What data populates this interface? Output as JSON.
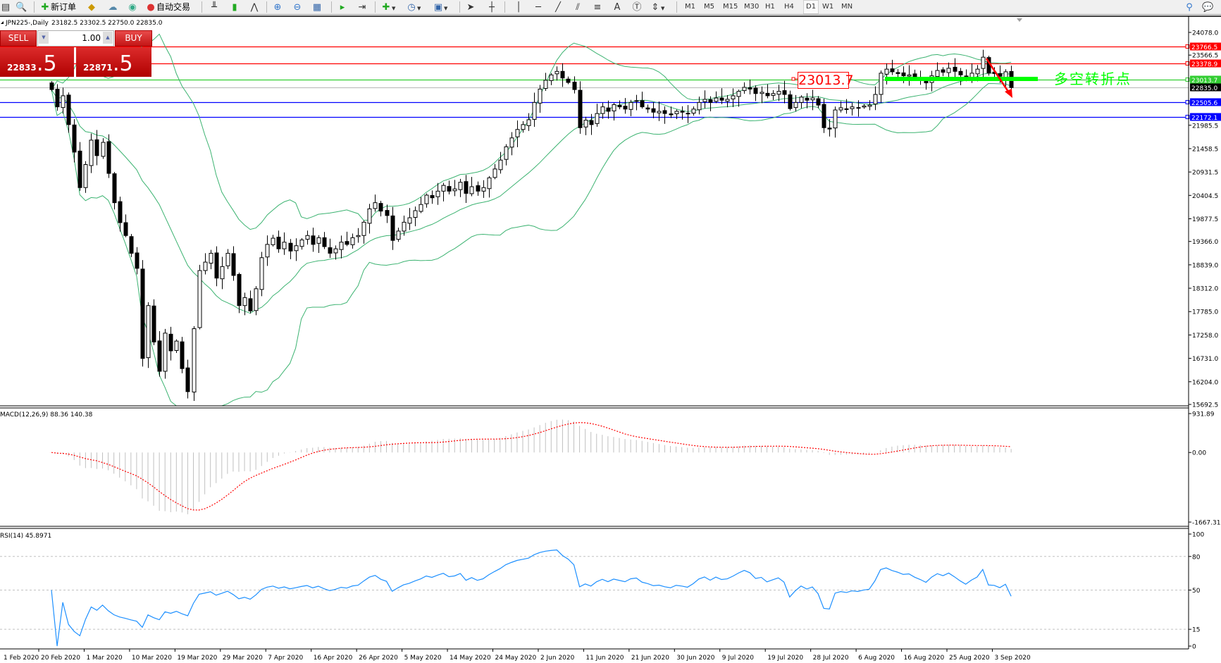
{
  "toolbar": {
    "new_order_label": "新订单",
    "auto_trading_label": "自动交易",
    "timeframes": [
      "M1",
      "M5",
      "M15",
      "M30",
      "H1",
      "H4",
      "D1",
      "W1",
      "MN"
    ],
    "active_timeframe": "D1"
  },
  "chart_header": {
    "symbol_period": "JPN225-,Daily",
    "ohlc": "23182.5 23302.5 22750.0 22835.0"
  },
  "trade_panel": {
    "sell_label": "SELL",
    "buy_label": "BUY",
    "volume": "1.00",
    "sell_price_main": "22833",
    "sell_price_big": ".5",
    "buy_price_main": "22871",
    "buy_price_big": ".5"
  },
  "annotations": {
    "level_label": "23013.7",
    "note": "多空转折点"
  },
  "chart_data": {
    "type": "candlestick",
    "symbol": "JPN225-",
    "period": "Daily",
    "ylim": [
      15692.5,
      24078.0
    ],
    "price_ticks": [
      "24078.0",
      "23566.5",
      "21985.5",
      "21458.5",
      "20931.5",
      "20404.5",
      "19877.5",
      "19366.0",
      "18839.0",
      "18312.0",
      "17785.0",
      "17258.0",
      "16731.0",
      "16204.0",
      "15692.5"
    ],
    "horizontal_levels": [
      {
        "price": 23766.5,
        "label": "23766.5",
        "color": "#ff0000"
      },
      {
        "price": 23378.9,
        "label": "23378.9",
        "color": "#ff0000"
      },
      {
        "price": 23013.7,
        "label": "23013.7",
        "color": "#32cd32"
      },
      {
        "price": 22835.0,
        "label": "22835.0",
        "color": "#000000",
        "line_color": "#c0c0c0"
      },
      {
        "price": 22505.6,
        "label": "22505.6",
        "color": "#0000ff"
      },
      {
        "price": 22172.1,
        "label": "22172.1",
        "color": "#0000ff"
      }
    ],
    "bollinger_color": "#3cb371",
    "close": [
      22790,
      22400,
      22650,
      22000,
      21380,
      20580,
      21100,
      21650,
      21300,
      21600,
      20900,
      20240,
      19790,
      19500,
      19100,
      18760,
      16730,
      17920,
      17100,
      16440,
      17300,
      16900,
      17120,
      16500,
      15980,
      17400,
      18710,
      18900,
      19100,
      18540,
      18800,
      19100,
      18600,
      17920,
      18100,
      17800,
      18300,
      19000,
      19300,
      19440,
      19200,
      19350,
      19150,
      19270,
      19400,
      19500,
      19300,
      19450,
      19250,
      19100,
      19200,
      19350,
      19300,
      19450,
      19500,
      19800,
      20100,
      20240,
      20050,
      19950,
      19390,
      19600,
      19800,
      19900,
      20060,
      20200,
      20410,
      20350,
      20500,
      20630,
      20500,
      20550,
      20700,
      20450,
      20600,
      20500,
      20580,
      20800,
      21000,
      21200,
      21500,
      21700,
      21890,
      22000,
      22110,
      22500,
      22800,
      23000,
      23120,
      23200,
      23050,
      22950,
      22790,
      21930,
      22100,
      22000,
      22250,
      22400,
      22300,
      22450,
      22400,
      22350,
      22500,
      22540,
      22400,
      22350,
      22280,
      22300,
      22250,
      22220,
      22300,
      22280,
      22250,
      22350,
      22500,
      22570,
      22500,
      22600,
      22550,
      22570,
      22650,
      22750,
      22840,
      22800,
      22700,
      22730,
      22650,
      22700,
      22750,
      22680,
      22360,
      22500,
      22620,
      22550,
      22600,
      22440,
      21930,
      21900,
      22330,
      22380,
      22350,
      22400,
      22380,
      22420,
      22440,
      22680,
      23160,
      23250,
      23190,
      23150,
      23100,
      23120,
      23050,
      23000,
      22940,
      23100,
      23220,
      23180,
      23270,
      23200,
      23120,
      23050,
      23160,
      23250,
      23520,
      23160,
      23150,
      23090,
      23190,
      22835
    ],
    "date_labels": [
      "1 Feb 2020",
      "20 Feb 2020",
      "1 Mar 2020",
      "10 Mar 2020",
      "19 Mar 2020",
      "29 Mar 2020",
      "7 Apr 2020",
      "16 Apr 2020",
      "26 Apr 2020",
      "5 May 2020",
      "14 May 2020",
      "24 May 2020",
      "2 Jun 2020",
      "11 Jun 2020",
      "21 Jun 2020",
      "30 Jun 2020",
      "9 Jul 2020",
      "19 Jul 2020",
      "28 Jul 2020",
      "6 Aug 2020",
      "16 Aug 2020",
      "25 Aug 2020",
      "3 Sep 2020"
    ],
    "macd": {
      "label": "MACD(12,26,9) 88.36 140.38",
      "ylim": [
        -1667.31,
        931.89
      ],
      "ticks": [
        "931.89",
        "0.00",
        "-1667.31"
      ],
      "histogram_color": "#c0c0c0",
      "signal_color": "#ff0000"
    },
    "rsi": {
      "label": "RSI(14) 45.8971",
      "ylim": [
        0,
        100
      ],
      "levels": [
        80,
        50,
        15
      ],
      "ticks": [
        "100",
        "80",
        "50",
        "15",
        "0"
      ],
      "color": "#1e90ff"
    }
  }
}
